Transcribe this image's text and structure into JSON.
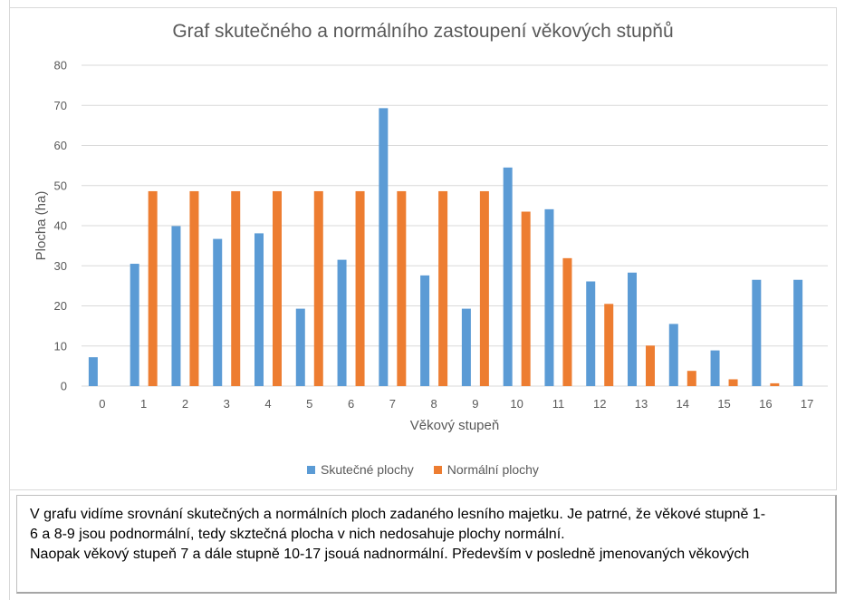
{
  "chart_data": {
    "type": "bar",
    "title": "Graf skutečného a normálního zastoupení věkových stupňů",
    "xlabel": "Věkový stupeň",
    "ylabel": "Plocha (ha)",
    "ylim": [
      0,
      80
    ],
    "yticks": [
      0,
      10,
      20,
      30,
      40,
      50,
      60,
      70,
      80
    ],
    "grid": true,
    "legend_position": "bottom",
    "categories": [
      "0",
      "1",
      "2",
      "3",
      "4",
      "5",
      "6",
      "7",
      "8",
      "9",
      "10",
      "11",
      "12",
      "13",
      "14",
      "15",
      "16",
      "17"
    ],
    "series": [
      {
        "name": "Skutečné plochy",
        "color": "#5b9bd5",
        "values": [
          7.2,
          30.5,
          39.9,
          36.7,
          38.1,
          19.3,
          31.5,
          69.3,
          27.6,
          19.3,
          54.5,
          44.1,
          26.1,
          28.3,
          15.5,
          8.9,
          26.5,
          26.5
        ]
      },
      {
        "name": "Normální plochy",
        "color": "#ed7d31",
        "values": [
          0,
          48.6,
          48.6,
          48.6,
          48.6,
          48.6,
          48.6,
          48.6,
          48.6,
          48.6,
          43.5,
          31.9,
          20.5,
          10.1,
          3.8,
          1.7,
          0.7,
          0
        ]
      }
    ]
  },
  "textbox": {
    "line1": "V grafu vidíme srovnání skutečných a normálních ploch zadaného lesního majetku. Je patrné, že věkové stupně 1-",
    "line2": "6 a 8-9 jsou podnormální, tedy skztečná plocha v nich nedosahuje plochy normální.",
    "line3": "Naopak věkový stupeň 7 a dále stupně 10-17 jsouá nadnormální. Především v posledně jmenovaných věkových"
  }
}
